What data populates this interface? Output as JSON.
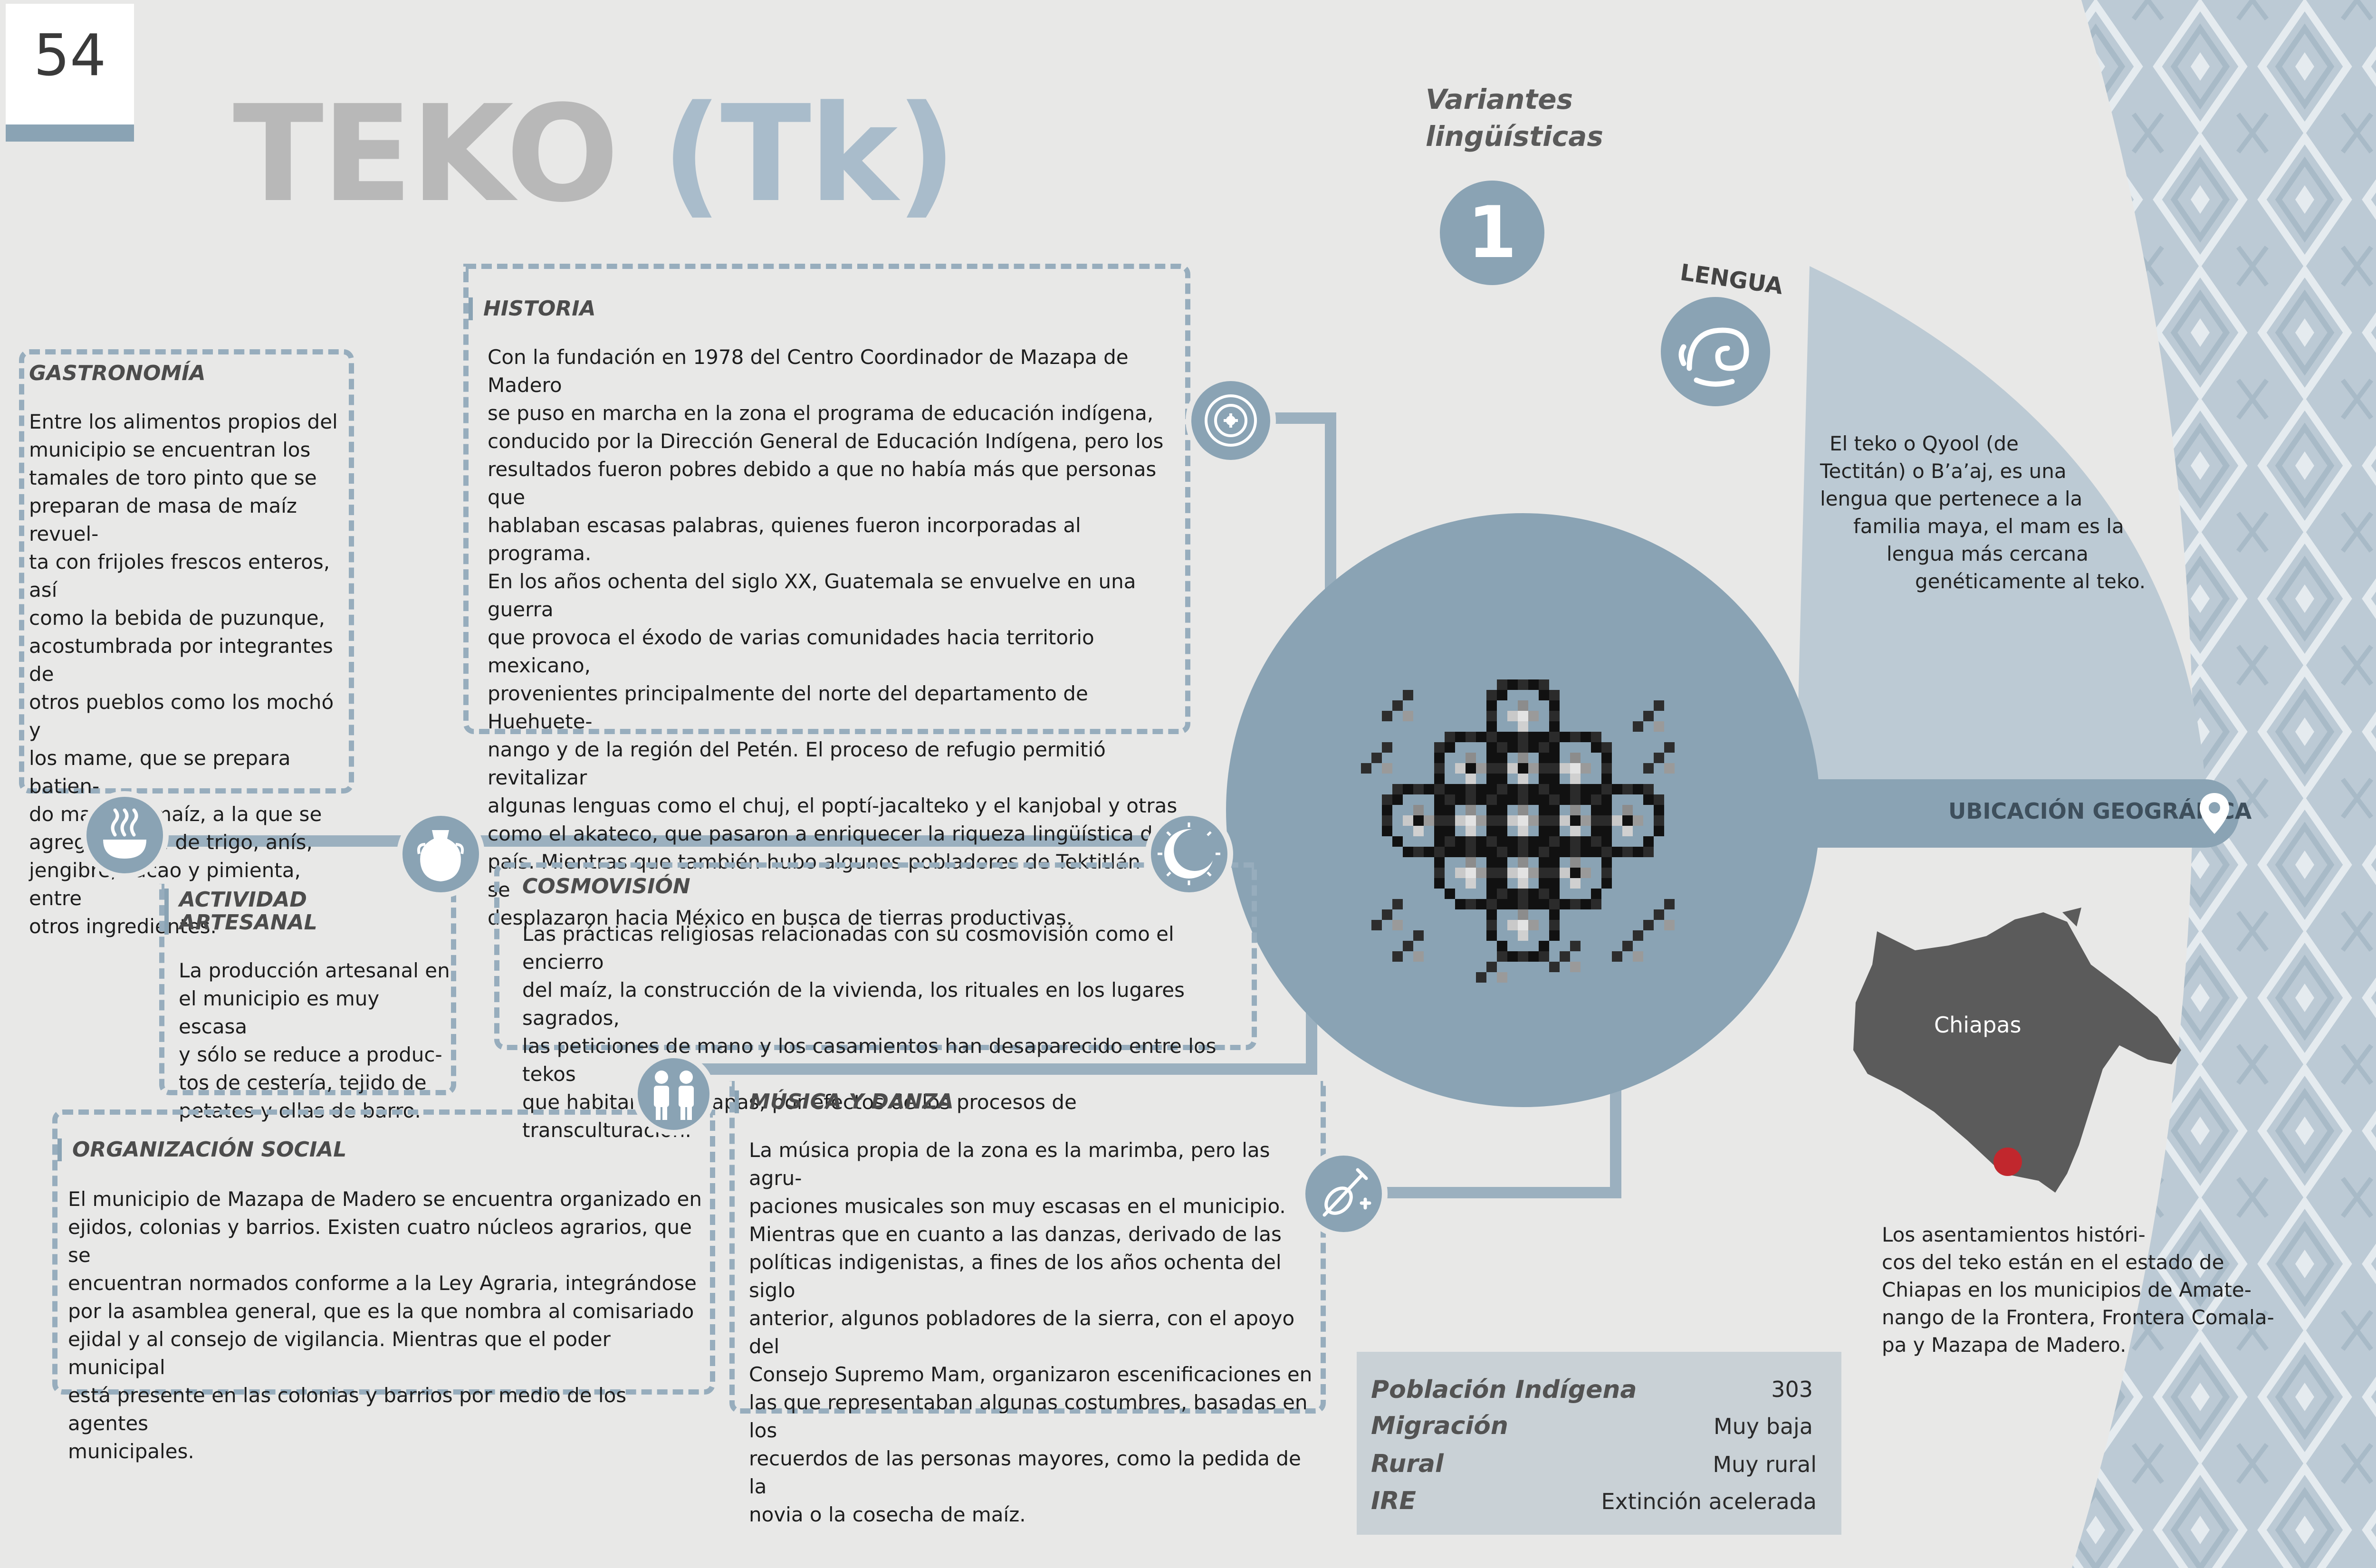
{
  "page_number": "54",
  "title": {
    "name": "TEKO",
    "code": "(Tk)"
  },
  "variants": {
    "label_line1": "Variantes",
    "label_line2": "lingüísticas",
    "count": "1"
  },
  "lengua": {
    "label": "LENGUA",
    "lines": [
      "El teko o Qyool (de",
      "Tectitán) o B’a’aj, es una",
      "lengua que pertenece a la",
      "familia maya, el mam es la",
      "lengua más cercana",
      "genéticamente al teko."
    ]
  },
  "ubicacion": {
    "label": "UBICACIÓN GEOGRÁFICA",
    "map_label": "Chiapas",
    "lines": [
      "Los asentamientos históri-",
      "cos del teko están en el estado de",
      "Chiapas  en los municipios de Amate-",
      "nango de la Frontera, Frontera Comala-",
      "pa y Mazapa de Madero."
    ]
  },
  "historia": {
    "title": "HISTORIA",
    "lines": [
      "Con la fundación en 1978 del Centro Coordinador de Mazapa de Madero",
      "se puso en marcha en la zona el programa de educación indígena,",
      "conducido por la Dirección General de Educación Indígena, pero los",
      "resultados fueron pobres debido a que no había más que personas que",
      "hablaban escasas palabras, quienes fueron incorporadas al programa.",
      "En los años ochenta del siglo XX, Guatemala se envuelve en una guerra",
      "que provoca el éxodo de varias comunidades hacia territorio mexicano,",
      "provenientes principalmente del norte del departamento de Huehuete-",
      "nango y de la región del Petén. El proceso de refugio permitió revitalizar",
      "algunas lenguas como el chuj, el poptí-jacalteko y el kanjobal y otras",
      "como el akateco, que pasaron a enriquecer la riqueza lingüística del",
      "país. Mientras que también hubo algunos pobladores de Tektitlán que se",
      "desplazaron hacia México en busca de tierras productivas."
    ]
  },
  "gastronomia": {
    "title": "GASTRONOMÍA",
    "lines": [
      "Entre los alimentos propios del",
      "municipio se encuentran los",
      "tamales de toro pinto que se",
      "preparan de masa de maíz revuel-",
      "ta con frijoles frescos enteros, así",
      "como la bebida de puzunque,",
      "acostumbrada por integrantes de",
      "otros pueblos como los mochó y",
      "los mame, que se prepara batien-",
      "do masa de maíz, a la que se",
      "agrega harina de trigo, anís,",
      "jengibre, cacao y pimienta, entre",
      "otros ingredientes."
    ]
  },
  "artesanal": {
    "title": "ACTIVIDAD ARTESANAL",
    "lines": [
      "La producción artesanal en",
      "el municipio es muy escasa",
      "y sólo se reduce a produc-",
      "tos de cestería, tejido de",
      "petates y ollas de barro."
    ]
  },
  "cosmovision": {
    "title": "COSMOVISIÓN",
    "lines": [
      "Las prácticas religiosas relacionadas con su cosmovisión como el encierro",
      "del maíz, la construcción de la vivienda, los rituales en los lugares sagrados,",
      "las peticiones de mano y los casamientos han desaparecido entre los tekos",
      "que habitan en Chiapas, por efectos de los procesos de transculturación."
    ]
  },
  "organizacion": {
    "title": "ORGANIZACIÓN SOCIAL",
    "lines": [
      "El municipio de Mazapa de Madero se encuentra organizado en",
      "ejidos, colonias y barrios. Existen cuatro núcleos agrarios, que se",
      "encuentran normados conforme a la Ley Agraria, integrándose",
      "por la asamblea general, que es la que nombra al comisariado",
      "ejidal y al consejo de vigilancia. Mientras que el poder municipal",
      "está presente en las colonias y barrios por medio de los agentes",
      "municipales."
    ]
  },
  "musica": {
    "title": "MÚSICA Y DANZA",
    "lines": [
      "La música propia de la zona es la marimba, pero las agru-",
      "paciones musicales son muy escasas en el municipio.",
      "Mientras que en cuanto a las danzas, derivado de las",
      "políticas indigenistas, a fines de los años ochenta del siglo",
      "anterior, algunos pobladores de la sierra, con el apoyo del",
      "Consejo Supremo Mam, organizaron escenificaciones en",
      "las que representaban algunas costumbres, basadas en los",
      "recuerdos de las personas mayores, como la pedida de la",
      "novia o la cosecha de maíz."
    ]
  },
  "stats": [
    {
      "label": "Población Indígena",
      "value": "303"
    },
    {
      "label": "Migración",
      "value": "Muy baja"
    },
    {
      "label": "Rural",
      "value": "Muy rural"
    },
    {
      "label": "IRE",
      "value": "Extinción acelerada"
    }
  ],
  "icons": [
    "steam-bowl-icon",
    "clay-pot-icon",
    "sun-moon-icon",
    "people-icon",
    "violin-icon",
    "glyph-icon",
    "speech-scroll-icon",
    "location-pin-icon"
  ],
  "colors": {
    "accent": "#8aa3b4",
    "title_gray": "#b8b8b8",
    "title_blue": "#a9bccb",
    "map": "#5a5a5a",
    "marker": "#c1272d"
  }
}
